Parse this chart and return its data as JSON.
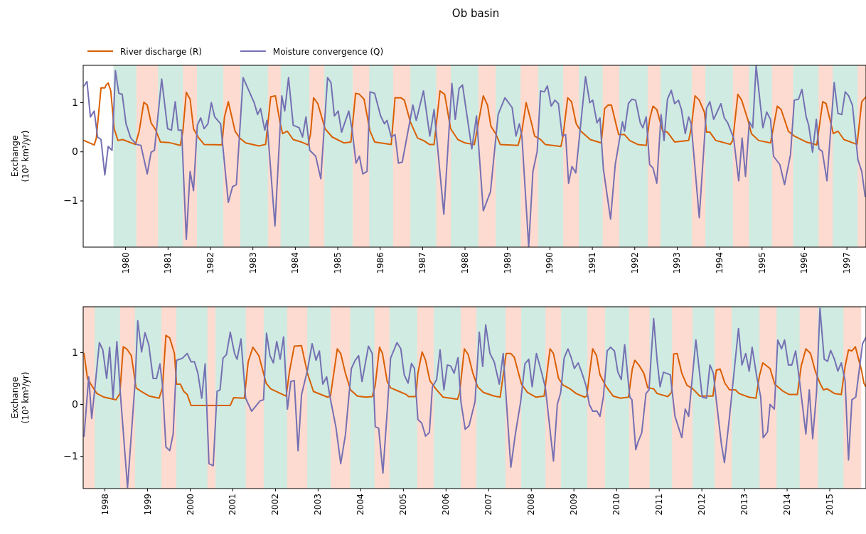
{
  "chart_data": [
    {
      "type": "line",
      "title": "Ob basin",
      "ylabel": "Exchange\n(10³ km³/yr)",
      "legend": "top left",
      "xlim": [
        1979.0,
        1997.45
      ],
      "xticks": [
        1980,
        1981,
        1982,
        1983,
        1984,
        1985,
        1986,
        1987,
        1988,
        1989,
        1990,
        1991,
        1992,
        1993,
        1994,
        1995,
        1996,
        1997
      ],
      "ylim": [
        -1.94,
        1.76
      ],
      "yticks": [
        {
          "value": -1,
          "label": "−1"
        },
        {
          "value": 0,
          "label": "0"
        },
        {
          "value": 1,
          "label": "1"
        }
      ],
      "bands": [
        {
          "axis": "x",
          "from": 1979.72,
          "to": 1980.26,
          "color": "#d0ebe1"
        },
        {
          "axis": "x",
          "from": 1980.26,
          "to": 1980.77,
          "color": "#fddbd0"
        },
        {
          "axis": "x",
          "from": 1980.77,
          "to": 1981.36,
          "color": "#d0ebe1"
        },
        {
          "axis": "x",
          "from": 1981.36,
          "to": 1981.69,
          "color": "#fddbd0"
        },
        {
          "axis": "x",
          "from": 1981.69,
          "to": 1982.31,
          "color": "#d0ebe1"
        },
        {
          "axis": "x",
          "from": 1982.31,
          "to": 1982.71,
          "color": "#fddbd0"
        },
        {
          "axis": "x",
          "from": 1982.71,
          "to": 1983.36,
          "color": "#d0ebe1"
        },
        {
          "axis": "x",
          "from": 1983.36,
          "to": 1983.66,
          "color": "#fddbd0"
        },
        {
          "axis": "x",
          "from": 1983.66,
          "to": 1984.34,
          "color": "#d0ebe1"
        },
        {
          "axis": "x",
          "from": 1984.34,
          "to": 1984.69,
          "color": "#fddbd0"
        },
        {
          "axis": "x",
          "from": 1984.69,
          "to": 1985.36,
          "color": "#d0ebe1"
        },
        {
          "axis": "x",
          "from": 1985.36,
          "to": 1985.75,
          "color": "#fddbd0"
        },
        {
          "axis": "x",
          "from": 1985.75,
          "to": 1986.31,
          "color": "#d0ebe1"
        },
        {
          "axis": "x",
          "from": 1986.31,
          "to": 1986.72,
          "color": "#fddbd0"
        },
        {
          "axis": "x",
          "from": 1986.72,
          "to": 1987.33,
          "color": "#d0ebe1"
        },
        {
          "axis": "x",
          "from": 1987.33,
          "to": 1987.67,
          "color": "#fddbd0"
        },
        {
          "axis": "x",
          "from": 1987.67,
          "to": 1988.32,
          "color": "#d0ebe1"
        },
        {
          "axis": "x",
          "from": 1988.32,
          "to": 1988.73,
          "color": "#fddbd0"
        },
        {
          "axis": "x",
          "from": 1988.73,
          "to": 1989.32,
          "color": "#d0ebe1"
        },
        {
          "axis": "x",
          "from": 1989.32,
          "to": 1989.73,
          "color": "#fddbd0"
        },
        {
          "axis": "x",
          "from": 1989.73,
          "to": 1990.32,
          "color": "#d0ebe1"
        },
        {
          "axis": "x",
          "from": 1990.32,
          "to": 1990.69,
          "color": "#fddbd0"
        },
        {
          "axis": "x",
          "from": 1990.69,
          "to": 1991.25,
          "color": "#d0ebe1"
        },
        {
          "axis": "x",
          "from": 1991.25,
          "to": 1991.64,
          "color": "#fddbd0"
        },
        {
          "axis": "x",
          "from": 1991.64,
          "to": 1992.31,
          "color": "#d0ebe1"
        },
        {
          "axis": "x",
          "from": 1992.31,
          "to": 1992.61,
          "color": "#fddbd0"
        },
        {
          "axis": "x",
          "from": 1992.61,
          "to": 1993.35,
          "color": "#d0ebe1"
        },
        {
          "axis": "x",
          "from": 1993.35,
          "to": 1993.67,
          "color": "#fddbd0"
        },
        {
          "axis": "x",
          "from": 1993.67,
          "to": 1994.32,
          "color": "#d0ebe1"
        },
        {
          "axis": "x",
          "from": 1994.32,
          "to": 1994.7,
          "color": "#fddbd0"
        },
        {
          "axis": "x",
          "from": 1994.7,
          "to": 1995.24,
          "color": "#d0ebe1"
        },
        {
          "axis": "x",
          "from": 1995.24,
          "to": 1995.74,
          "color": "#fddbd0"
        },
        {
          "axis": "x",
          "from": 1995.74,
          "to": 1996.34,
          "color": "#d0ebe1"
        },
        {
          "axis": "x",
          "from": 1996.34,
          "to": 1996.67,
          "color": "#fddbd0"
        },
        {
          "axis": "x",
          "from": 1996.67,
          "to": 1997.26,
          "color": "#d0ebe1"
        },
        {
          "axis": "x",
          "from": 1997.26,
          "to": 1997.45,
          "color": "#fddbd0"
        }
      ],
      "series": [
        {
          "name": "River discharge (R)",
          "color": "#d95f02",
          "x": [
            1979.02,
            1979.26,
            1979.31,
            1979.42,
            1979.51,
            1979.54,
            1979.59,
            1979.65,
            1979.73,
            1979.82,
            1979.93,
            1980.23,
            1980.32,
            1980.43,
            1980.51,
            1980.6,
            1980.71,
            1980.82,
            1981.02,
            1981.29,
            1981.35,
            1981.43,
            1981.52,
            1981.6,
            1981.71,
            1981.85,
            1982.27,
            1982.33,
            1982.42,
            1982.58,
            1982.69,
            1982.83,
            1983.14,
            1983.3,
            1983.42,
            1983.53,
            1983.64,
            1983.7,
            1983.81,
            1983.95,
            1984.14,
            1984.3,
            1984.36,
            1984.43,
            1984.53,
            1984.7,
            1984.87,
            1985.15,
            1985.31,
            1985.42,
            1985.51,
            1985.62,
            1985.76,
            1985.87,
            1986.26,
            1986.35,
            1986.49,
            1986.57,
            1986.71,
            1986.88,
            1987.02,
            1987.16,
            1987.27,
            1987.41,
            1987.52,
            1987.66,
            1987.83,
            1988.0,
            1988.22,
            1988.3,
            1988.43,
            1988.53,
            1988.61,
            1988.72,
            1988.83,
            1989.25,
            1989.34,
            1989.44,
            1989.56,
            1989.64,
            1989.78,
            1989.89,
            1990.26,
            1990.31,
            1990.42,
            1990.51,
            1990.62,
            1990.73,
            1990.95,
            1991.21,
            1991.29,
            1991.37,
            1991.45,
            1991.57,
            1991.62,
            1991.76,
            1991.88,
            1992.07,
            1992.27,
            1992.35,
            1992.43,
            1992.52,
            1992.66,
            1992.77,
            1992.94,
            1993.27,
            1993.33,
            1993.42,
            1993.52,
            1993.64,
            1993.69,
            1993.77,
            1993.91,
            1994.05,
            1994.25,
            1994.31,
            1994.43,
            1994.52,
            1994.67,
            1994.75,
            1994.92,
            1995.2,
            1995.36,
            1995.45,
            1995.62,
            1995.76,
            1996.04,
            1996.29,
            1996.43,
            1996.51,
            1996.68,
            1996.79,
            1996.93,
            1997.24,
            1997.35,
            1997.45
          ],
          "values": [
            0.23,
            0.14,
            0.28,
            1.3,
            1.3,
            1.36,
            1.4,
            1.24,
            0.47,
            0.23,
            0.25,
            0.15,
            0.42,
            1.01,
            0.95,
            0.59,
            0.44,
            0.2,
            0.19,
            0.13,
            0.42,
            1.21,
            1.07,
            0.47,
            0.3,
            0.15,
            0.14,
            0.71,
            1.02,
            0.42,
            0.28,
            0.18,
            0.12,
            0.15,
            1.12,
            1.14,
            0.59,
            0.37,
            0.42,
            0.25,
            0.2,
            0.14,
            0.37,
            1.1,
            0.98,
            0.47,
            0.3,
            0.18,
            0.2,
            1.19,
            1.17,
            1.07,
            0.42,
            0.2,
            0.15,
            1.1,
            1.1,
            1.05,
            0.61,
            0.28,
            0.23,
            0.15,
            0.15,
            1.24,
            1.17,
            0.47,
            0.25,
            0.18,
            0.15,
            0.52,
            1.14,
            0.95,
            0.52,
            0.37,
            0.15,
            0.13,
            0.42,
            1.0,
            0.61,
            0.32,
            0.25,
            0.15,
            0.11,
            0.32,
            1.1,
            1.02,
            0.57,
            0.42,
            0.25,
            0.18,
            0.88,
            0.95,
            0.95,
            0.52,
            0.35,
            0.35,
            0.23,
            0.15,
            0.13,
            0.66,
            0.93,
            0.86,
            0.42,
            0.4,
            0.2,
            0.23,
            0.47,
            1.14,
            1.05,
            0.81,
            0.4,
            0.4,
            0.23,
            0.2,
            0.15,
            0.23,
            1.17,
            1.05,
            0.64,
            0.37,
            0.23,
            0.18,
            0.93,
            0.86,
            0.42,
            0.32,
            0.2,
            0.14,
            1.02,
            0.98,
            0.37,
            0.42,
            0.25,
            0.15,
            1.02,
            1.12
          ]
        },
        {
          "name": "Moisture convergence (Q)",
          "color": "#7570b3",
          "x": [
            1979.02,
            1979.09,
            1979.17,
            1979.26,
            1979.34,
            1979.42,
            1979.51,
            1979.59,
            1979.68,
            1979.76,
            1979.84,
            1979.92,
            1980.01,
            1980.12,
            1980.26,
            1980.36,
            1980.51,
            1980.6,
            1980.68,
            1980.85,
            1980.99,
            1981.08,
            1981.17,
            1981.24,
            1981.32,
            1981.43,
            1981.52,
            1981.6,
            1981.69,
            1981.77,
            1981.85,
            1981.94,
            1982.02,
            1982.1,
            1982.24,
            1982.42,
            1982.52,
            1982.61,
            1982.77,
            1983.03,
            1983.11,
            1983.18,
            1983.28,
            1983.33,
            1983.52,
            1983.68,
            1983.75,
            1983.84,
            1983.95,
            1984.09,
            1984.17,
            1984.25,
            1984.34,
            1984.48,
            1984.6,
            1984.76,
            1984.84,
            1984.92,
            1985.01,
            1985.09,
            1985.26,
            1985.34,
            1985.43,
            1985.51,
            1985.59,
            1985.69,
            1985.76,
            1985.87,
            1986.01,
            1986.1,
            1986.16,
            1986.26,
            1986.35,
            1986.43,
            1986.52,
            1986.77,
            1986.85,
            1987.02,
            1987.17,
            1987.27,
            1987.5,
            1987.69,
            1987.77,
            1987.86,
            1987.94,
            1988.16,
            1988.27,
            1988.43,
            1988.6,
            1988.78,
            1988.94,
            1989.11,
            1989.2,
            1989.28,
            1989.34,
            1989.5,
            1989.6,
            1989.7,
            1989.78,
            1989.87,
            1989.94,
            1990.03,
            1990.12,
            1990.2,
            1990.29,
            1990.37,
            1990.44,
            1990.52,
            1990.61,
            1990.84,
            1990.94,
            1991.01,
            1991.11,
            1991.18,
            1991.26,
            1991.43,
            1991.54,
            1991.71,
            1991.76,
            1991.85,
            1991.93,
            1992.02,
            1992.13,
            1992.19,
            1992.27,
            1992.35,
            1992.43,
            1992.52,
            1992.62,
            1992.69,
            1992.77,
            1992.86,
            1992.94,
            1993.03,
            1993.1,
            1993.19,
            1993.27,
            1993.33,
            1993.52,
            1993.69,
            1993.77,
            1993.86,
            1994.03,
            1994.11,
            1994.19,
            1994.33,
            1994.45,
            1994.53,
            1994.61,
            1994.7,
            1994.78,
            1994.86,
            1995.02,
            1995.11,
            1995.2,
            1995.27,
            1995.42,
            1995.53,
            1995.67,
            1995.76,
            1995.86,
            1995.94,
            1996.04,
            1996.1,
            1996.19,
            1996.28,
            1996.34,
            1996.42,
            1996.53,
            1996.7,
            1996.79,
            1996.88,
            1996.96,
            1997.04,
            1997.13,
            1997.26,
            1997.35,
            1997.43
          ],
          "values": [
            1.34,
            1.43,
            0.71,
            0.83,
            0.3,
            0.25,
            -0.47,
            0.11,
            0.03,
            1.65,
            1.19,
            1.17,
            0.57,
            0.28,
            0.15,
            0.13,
            -0.45,
            -0.01,
            0.03,
            1.48,
            0.47,
            0.44,
            1.02,
            0.44,
            0.44,
            -1.78,
            -0.4,
            -0.79,
            0.54,
            0.69,
            0.47,
            0.57,
            1.0,
            0.71,
            0.57,
            -1.03,
            -0.71,
            -0.67,
            1.51,
            1.0,
            0.76,
            0.88,
            0.44,
            0.64,
            -1.51,
            1.14,
            0.83,
            1.51,
            0.54,
            0.49,
            0.3,
            0.71,
            0.03,
            -0.09,
            -0.55,
            1.51,
            1.41,
            0.73,
            0.83,
            0.4,
            0.83,
            0.44,
            -0.23,
            -0.09,
            -0.45,
            -0.4,
            1.22,
            1.19,
            0.73,
            0.57,
            0.64,
            0.3,
            0.35,
            -0.23,
            -0.21,
            0.95,
            0.64,
            1.24,
            0.32,
            0.86,
            -1.27,
            1.39,
            0.66,
            1.29,
            1.36,
            0.06,
            0.73,
            -1.2,
            -0.81,
            0.76,
            1.1,
            0.9,
            0.32,
            0.57,
            0.32,
            -1.93,
            -0.4,
            0.01,
            1.24,
            1.22,
            1.34,
            0.93,
            1.05,
            0.98,
            0.32,
            0.35,
            -0.64,
            -0.3,
            -0.43,
            1.53,
            1.0,
            1.05,
            0.59,
            0.69,
            -0.35,
            -1.37,
            -0.26,
            0.61,
            0.42,
            0.98,
            1.07,
            1.05,
            0.59,
            0.49,
            0.71,
            -0.26,
            -0.33,
            -0.64,
            0.76,
            0.23,
            1.07,
            1.25,
            0.98,
            1.05,
            0.86,
            0.37,
            0.71,
            0.57,
            -1.34,
            0.88,
            1.02,
            0.66,
            0.98,
            0.69,
            0.59,
            0.28,
            -0.59,
            0.28,
            -0.5,
            0.61,
            0.49,
            1.75,
            0.49,
            0.81,
            0.66,
            -0.09,
            -0.26,
            -0.67,
            -0.06,
            1.05,
            1.07,
            1.27,
            0.71,
            0.54,
            -0.01,
            0.66,
            0.06,
            0.01,
            -0.59,
            1.41,
            0.78,
            0.76,
            1.22,
            1.14,
            0.95,
            -0.16,
            -0.4,
            -0.91
          ]
        }
      ]
    },
    {
      "type": "line",
      "ylabel": "Exchange\n(10³ km³/yr)",
      "xlim": [
        1997.49,
        2015.85
      ],
      "xticks": [
        1998,
        1999,
        2000,
        2001,
        2002,
        2003,
        2004,
        2005,
        2006,
        2007,
        2008,
        2009,
        2010,
        2011,
        2012,
        2013,
        2014,
        2015
      ],
      "ylim": [
        -1.62,
        1.88
      ],
      "yticks": [
        {
          "value": -1,
          "label": "−1"
        },
        {
          "value": 0,
          "label": "0"
        },
        {
          "value": 1,
          "label": "1"
        }
      ],
      "bands": [
        {
          "axis": "x",
          "from": 1997.49,
          "to": 1997.77,
          "color": "#fddbd0"
        },
        {
          "axis": "x",
          "from": 1997.77,
          "to": 1998.36,
          "color": "#d0ebe1"
        },
        {
          "axis": "x",
          "from": 1998.36,
          "to": 1998.71,
          "color": "#fddbd0"
        },
        {
          "axis": "x",
          "from": 1998.71,
          "to": 1999.33,
          "color": "#d0ebe1"
        },
        {
          "axis": "x",
          "from": 1999.33,
          "to": 1999.68,
          "color": "#fddbd0"
        },
        {
          "axis": "x",
          "from": 1999.68,
          "to": 2000.41,
          "color": "#d0ebe1"
        },
        {
          "axis": "x",
          "from": 2000.41,
          "to": 2000.6,
          "color": "#fddbd0"
        },
        {
          "axis": "x",
          "from": 2000.6,
          "to": 2001.31,
          "color": "#d0ebe1"
        },
        {
          "axis": "x",
          "from": 2001.31,
          "to": 2001.73,
          "color": "#fddbd0"
        },
        {
          "axis": "x",
          "from": 2001.73,
          "to": 2002.28,
          "color": "#d0ebe1"
        },
        {
          "axis": "x",
          "from": 2002.28,
          "to": 2002.75,
          "color": "#fddbd0"
        },
        {
          "axis": "x",
          "from": 2002.75,
          "to": 2003.3,
          "color": "#d0ebe1"
        },
        {
          "axis": "x",
          "from": 2003.3,
          "to": 2003.76,
          "color": "#fddbd0"
        },
        {
          "axis": "x",
          "from": 2003.76,
          "to": 2004.33,
          "color": "#d0ebe1"
        },
        {
          "axis": "x",
          "from": 2004.33,
          "to": 2004.68,
          "color": "#fddbd0"
        },
        {
          "axis": "x",
          "from": 2004.68,
          "to": 2005.33,
          "color": "#d0ebe1"
        },
        {
          "axis": "x",
          "from": 2005.33,
          "to": 2005.72,
          "color": "#fddbd0"
        },
        {
          "axis": "x",
          "from": 2005.72,
          "to": 2006.35,
          "color": "#d0ebe1"
        },
        {
          "axis": "x",
          "from": 2006.35,
          "to": 2006.72,
          "color": "#fddbd0"
        },
        {
          "axis": "x",
          "from": 2006.72,
          "to": 2007.4,
          "color": "#d0ebe1"
        },
        {
          "axis": "x",
          "from": 2007.4,
          "to": 2007.77,
          "color": "#fddbd0"
        },
        {
          "axis": "x",
          "from": 2007.77,
          "to": 2008.34,
          "color": "#d0ebe1"
        },
        {
          "axis": "x",
          "from": 2008.34,
          "to": 2008.7,
          "color": "#fddbd0"
        },
        {
          "axis": "x",
          "from": 2008.7,
          "to": 2009.32,
          "color": "#d0ebe1"
        },
        {
          "axis": "x",
          "from": 2009.32,
          "to": 2009.74,
          "color": "#fddbd0"
        },
        {
          "axis": "x",
          "from": 2009.74,
          "to": 2010.3,
          "color": "#d0ebe1"
        },
        {
          "axis": "x",
          "from": 2010.3,
          "to": 2010.78,
          "color": "#fddbd0"
        },
        {
          "axis": "x",
          "from": 2010.78,
          "to": 2011.31,
          "color": "#d0ebe1"
        },
        {
          "axis": "x",
          "from": 2011.31,
          "to": 2011.79,
          "color": "#fddbd0"
        },
        {
          "axis": "x",
          "from": 2011.79,
          "to": 2012.31,
          "color": "#d0ebe1"
        },
        {
          "axis": "x",
          "from": 2012.31,
          "to": 2012.71,
          "color": "#fddbd0"
        },
        {
          "axis": "x",
          "from": 2012.71,
          "to": 2013.36,
          "color": "#d0ebe1"
        },
        {
          "axis": "x",
          "from": 2013.36,
          "to": 2013.76,
          "color": "#fddbd0"
        },
        {
          "axis": "x",
          "from": 2013.76,
          "to": 2014.3,
          "color": "#d0ebe1"
        },
        {
          "axis": "x",
          "from": 2014.3,
          "to": 2014.73,
          "color": "#fddbd0"
        },
        {
          "axis": "x",
          "from": 2014.73,
          "to": 2015.33,
          "color": "#d0ebe1"
        },
        {
          "axis": "x",
          "from": 2015.33,
          "to": 2015.73,
          "color": "#fddbd0"
        }
      ],
      "series": [
        {
          "color": "#d95f02",
          "x": [
            1997.51,
            1997.59,
            1997.67,
            1997.81,
            1997.98,
            1998.26,
            1998.35,
            1998.43,
            1998.51,
            1998.62,
            1998.73,
            1998.85,
            1999.04,
            1999.27,
            1999.35,
            1999.43,
            1999.52,
            1999.63,
            1999.68,
            1999.77,
            1999.85,
            1999.93,
            2000.02,
            2000.94,
            2001.02,
            2001.27,
            2001.36,
            2001.47,
            2001.61,
            2001.78,
            2001.89,
            2002.17,
            2002.25,
            2002.33,
            2002.44,
            2002.61,
            2002.75,
            2002.89,
            2003.22,
            2003.29,
            2003.45,
            2003.53,
            2003.64,
            2003.76,
            2003.92,
            2004.12,
            2004.27,
            2004.34,
            2004.44,
            2004.51,
            2004.62,
            2004.7,
            2004.9,
            2005.07,
            2005.12,
            2005.29,
            2005.34,
            2005.44,
            2005.52,
            2005.62,
            2005.76,
            2005.93,
            2006.27,
            2006.32,
            2006.43,
            2006.52,
            2006.63,
            2006.74,
            2006.88,
            2007.13,
            2007.27,
            2007.41,
            2007.52,
            2007.6,
            2007.77,
            2007.91,
            2008.11,
            2008.3,
            2008.44,
            2008.52,
            2008.64,
            2008.75,
            2008.91,
            2009.05,
            2009.25,
            2009.3,
            2009.44,
            2009.53,
            2009.61,
            2009.75,
            2009.92,
            2010.09,
            2010.28,
            2010.37,
            2010.43,
            2010.53,
            2010.64,
            2010.73,
            2010.87,
            2010.95,
            2011.2,
            2011.29,
            2011.34,
            2011.42,
            2011.53,
            2011.65,
            2011.79,
            2011.95,
            2012.26,
            2012.34,
            2012.43,
            2012.54,
            2012.65,
            2012.79,
            2012.87,
            2013.1,
            2013.27,
            2013.35,
            2013.43,
            2013.6,
            2013.71,
            2013.91,
            2014.05,
            2014.24,
            2014.33,
            2014.44,
            2014.55,
            2014.66,
            2014.77,
            2014.85,
            2014.94,
            2015.11,
            2015.27,
            2015.36,
            2015.44,
            2015.52,
            2015.6,
            2015.75,
            2015.8,
            2015.84
          ],
          "values": [
            0.98,
            0.5,
            0.39,
            0.21,
            0.14,
            0.09,
            0.21,
            1.11,
            1.07,
            0.94,
            0.32,
            0.25,
            0.16,
            0.12,
            0.32,
            1.33,
            1.28,
            0.98,
            0.39,
            0.39,
            0.25,
            0.19,
            -0.02,
            -0.02,
            0.13,
            0.12,
            0.82,
            1.1,
            0.94,
            0.41,
            0.3,
            0.19,
            0.16,
            0.64,
            1.12,
            1.13,
            0.6,
            0.25,
            0.14,
            0.16,
            1.07,
            0.98,
            0.6,
            0.28,
            0.16,
            0.14,
            0.15,
            0.37,
            1.1,
            0.98,
            0.44,
            0.32,
            0.25,
            0.19,
            0.15,
            0.15,
            0.6,
            1.01,
            0.85,
            0.46,
            0.3,
            0.14,
            0.1,
            0.23,
            1.07,
            0.96,
            0.6,
            0.34,
            0.23,
            0.16,
            0.14,
            0.98,
            0.98,
            0.91,
            0.39,
            0.23,
            0.14,
            0.16,
            1.07,
            0.98,
            0.5,
            0.37,
            0.3,
            0.21,
            0.14,
            0.16,
            1.07,
            0.94,
            0.57,
            0.35,
            0.16,
            0.12,
            0.14,
            0.69,
            0.85,
            0.75,
            0.6,
            0.32,
            0.3,
            0.21,
            0.15,
            0.23,
            0.97,
            0.98,
            0.6,
            0.37,
            0.3,
            0.16,
            0.16,
            0.66,
            0.68,
            0.41,
            0.28,
            0.28,
            0.21,
            0.14,
            0.12,
            0.55,
            0.8,
            0.69,
            0.39,
            0.25,
            0.19,
            0.19,
            0.74,
            1.07,
            0.98,
            0.64,
            0.41,
            0.28,
            0.3,
            0.21,
            0.19,
            0.73,
            1.05,
            1.03,
            1.11,
            0.64,
            0.41,
            0.35
          ]
        },
        {
          "color": "#7570b3",
          "x": [
            1997.51,
            1997.62,
            1997.69,
            1997.76,
            1997.87,
            1997.95,
            1998.04,
            1998.11,
            1998.19,
            1998.28,
            1998.36,
            1998.53,
            1998.71,
            1998.77,
            1998.86,
            1998.94,
            1999.03,
            1999.13,
            1999.21,
            1999.29,
            1999.35,
            1999.43,
            1999.52,
            1999.6,
            1999.68,
            1999.82,
            1999.93,
            2000.02,
            2000.1,
            2000.18,
            2000.27,
            2000.35,
            2000.44,
            2000.54,
            2000.63,
            2000.7,
            2000.77,
            2000.85,
            2000.94,
            2001.04,
            2001.1,
            2001.19,
            2001.3,
            2001.44,
            2001.64,
            2001.72,
            2001.79,
            2001.87,
            2001.95,
            2002.03,
            2002.11,
            2002.19,
            2002.28,
            2002.36,
            2002.44,
            2002.53,
            2002.61,
            2002.75,
            2002.86,
            2002.95,
            2003.03,
            2003.11,
            2003.2,
            2003.28,
            2003.42,
            2003.53,
            2003.64,
            2003.78,
            2003.87,
            2003.95,
            2004.03,
            2004.18,
            2004.27,
            2004.34,
            2004.42,
            2004.52,
            2004.62,
            2004.7,
            2004.85,
            2004.94,
            2005.02,
            2005.11,
            2005.19,
            2005.26,
            2005.34,
            2005.43,
            2005.52,
            2005.61,
            2005.68,
            2005.78,
            2005.86,
            2005.95,
            2006.03,
            2006.11,
            2006.19,
            2006.28,
            2006.35,
            2006.45,
            2006.54,
            2006.68,
            2006.78,
            2006.86,
            2006.93,
            2007.03,
            2007.13,
            2007.25,
            2007.34,
            2007.52,
            2007.63,
            2007.75,
            2007.85,
            2007.94,
            2008.02,
            2008.12,
            2008.24,
            2008.33,
            2008.52,
            2008.61,
            2008.69,
            2008.77,
            2008.86,
            2008.94,
            2009.01,
            2009.1,
            2009.19,
            2009.28,
            2009.36,
            2009.44,
            2009.54,
            2009.61,
            2009.69,
            2009.78,
            2009.86,
            2009.95,
            2010.03,
            2010.11,
            2010.19,
            2010.31,
            2010.36,
            2010.45,
            2010.5,
            2010.59,
            2010.69,
            2010.76,
            2010.87,
            2010.95,
            2011.02,
            2011.1,
            2011.26,
            2011.37,
            2011.53,
            2011.61,
            2011.69,
            2011.86,
            2012.01,
            2012.11,
            2012.19,
            2012.27,
            2012.34,
            2012.46,
            2012.53,
            2012.65,
            2012.76,
            2012.86,
            2012.94,
            2013.03,
            2013.11,
            2013.18,
            2013.28,
            2013.38,
            2013.44,
            2013.54,
            2013.6,
            2013.7,
            2013.78,
            2013.87,
            2013.94,
            2014.03,
            2014.11,
            2014.2,
            2014.3,
            2014.44,
            2014.52,
            2014.6,
            2014.69,
            2014.77,
            2014.87,
            2014.95,
            2015.02,
            2015.11,
            2015.19,
            2015.27,
            2015.36,
            2015.44,
            2015.52,
            2015.61,
            2015.77,
            2015.84
          ],
          "values": [
            -0.61,
            0.53,
            -0.27,
            0.28,
            1.19,
            1.05,
            0.5,
            1.1,
            0.12,
            1.21,
            0.23,
            -1.6,
            0.46,
            1.61,
            1.01,
            1.38,
            1.14,
            0.5,
            0.5,
            0.78,
            0.37,
            -0.82,
            -0.89,
            -0.57,
            0.85,
            0.89,
            0.98,
            0.82,
            0.82,
            0.6,
            0.12,
            0.78,
            -1.14,
            -1.18,
            0.25,
            0.28,
            0.89,
            0.96,
            1.39,
            0.98,
            0.87,
            1.26,
            0.12,
            -0.13,
            0.07,
            0.09,
            1.37,
            0.94,
            0.8,
            1.21,
            0.87,
            1.3,
            -0.09,
            0.44,
            0.46,
            -0.89,
            0.18,
            0.66,
            1.17,
            0.85,
            1.03,
            0.39,
            0.53,
            0.14,
            -0.45,
            -1.14,
            -0.59,
            0.69,
            0.85,
            0.94,
            0.44,
            1.12,
            0.98,
            -0.43,
            -0.46,
            -1.32,
            -0.13,
            0.89,
            1.19,
            1.07,
            0.57,
            0.41,
            0.79,
            0.69,
            -0.29,
            -0.36,
            -0.61,
            -0.54,
            0.34,
            0.48,
            1.05,
            0.28,
            0.76,
            0.74,
            0.6,
            0.9,
            0.05,
            -0.48,
            -0.41,
            0.05,
            1.39,
            0.73,
            1.53,
            0.98,
            0.82,
            0.39,
            0.98,
            -1.21,
            -0.55,
            0.05,
            0.78,
            0.87,
            0.34,
            0.98,
            0.62,
            0.32,
            -1.09,
            0.0,
            0.23,
            0.89,
            1.07,
            0.89,
            0.69,
            0.8,
            0.6,
            0.37,
            0.0,
            -0.13,
            -0.13,
            -0.23,
            0.14,
            1.03,
            1.1,
            1.03,
            0.62,
            0.48,
            1.15,
            0.14,
            0.09,
            -0.87,
            -0.73,
            -0.55,
            0.21,
            0.28,
            1.65,
            0.85,
            0.34,
            0.62,
            0.57,
            -0.23,
            -0.64,
            -0.09,
            -0.23,
            1.24,
            0.14,
            0.12,
            0.76,
            0.6,
            0.07,
            -0.77,
            -1.12,
            -0.23,
            0.66,
            1.46,
            0.76,
            0.98,
            0.64,
            1.1,
            0.57,
            0.14,
            -0.64,
            -0.53,
            0.0,
            -0.09,
            1.24,
            1.07,
            1.24,
            0.76,
            0.76,
            1.03,
            0.39,
            -0.57,
            0.28,
            -0.66,
            0.23,
            1.85,
            0.87,
            0.83,
            1.04,
            0.87,
            0.64,
            0.8,
            0.46,
            -1.07,
            0.09,
            0.14,
            1.17,
            1.28
          ]
        }
      ]
    }
  ]
}
